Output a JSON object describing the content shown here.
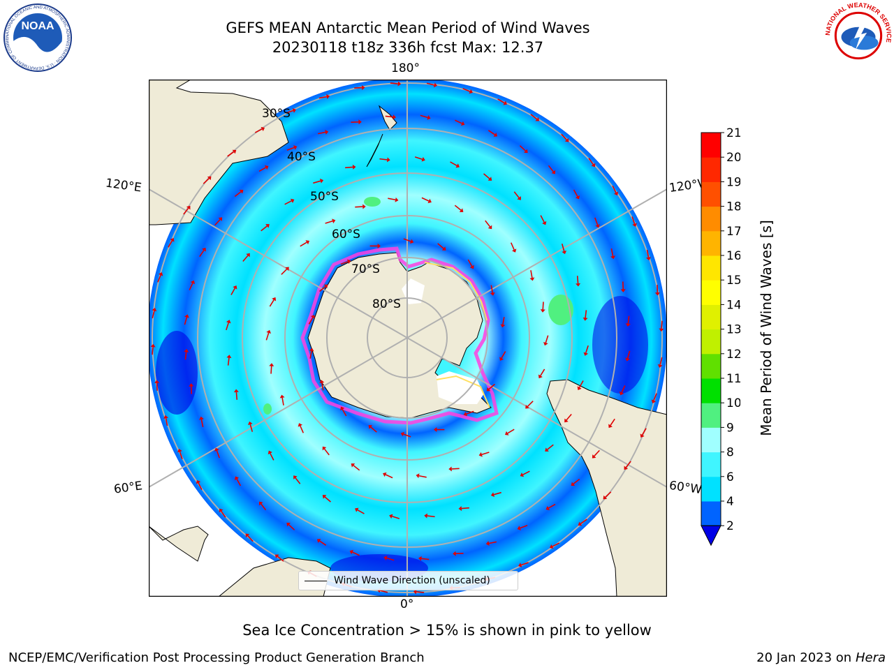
{
  "header": {
    "title_line1": "GEFS MEAN Antarctic Mean Period of Wind Waves",
    "title_line2": "20230118 t18z 336h fcst   Max: 12.37"
  },
  "logos": {
    "left_org": "NOAA",
    "left_ring_text": "NATIONAL OCEANIC AND ATMOSPHERIC ADMINISTRATION · U.S. DEPARTMENT OF COMMERCE",
    "right_ring_text": "NATIONAL WEATHER SERVICE"
  },
  "map": {
    "projection": "south-polar-stereographic",
    "lon_labels": {
      "top": "180°",
      "bottom": "0°",
      "upper_left": "120°E",
      "upper_right": "120°W",
      "lower_left": "60°E",
      "lower_right": "60°W"
    },
    "lat_labels": [
      "30°S",
      "40°S",
      "50°S",
      "60°S",
      "70°S",
      "80°S"
    ],
    "legend_label": "Wind Wave Direction (unscaled)"
  },
  "colorbar": {
    "label": "Mean Period of Wind Waves [s]",
    "ticks": [
      "2",
      "4",
      "6",
      "8",
      "9",
      "10",
      "11",
      "12",
      "13",
      "14",
      "15",
      "16",
      "17",
      "18",
      "19",
      "20",
      "21"
    ],
    "colors": [
      "#0064ff",
      "#00e1ff",
      "#40f5ff",
      "#a0ffff",
      "#50f080",
      "#00e000",
      "#60e000",
      "#c0f000",
      "#e0f000",
      "#ffff00",
      "#ffe600",
      "#ffb400",
      "#ff8c00",
      "#ff5000",
      "#ff2800",
      "#ff0000"
    ],
    "under_color": "#0000e6"
  },
  "footer": {
    "subtitle": "Sea Ice Concentration > 15% is shown in pink to yellow",
    "left": "NCEP/EMC/Verification Post Processing Product Generation Branch",
    "right_date": "20 Jan 2023 on ",
    "right_machine": "Hera"
  }
}
